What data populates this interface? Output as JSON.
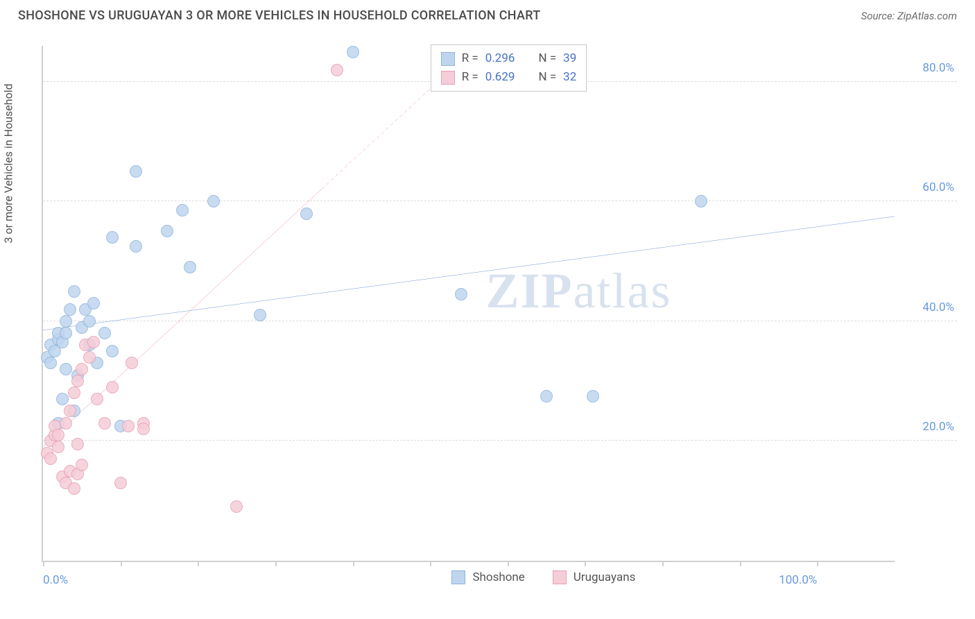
{
  "title": "SHOSHONE VS URUGUAYAN 3 OR MORE VEHICLES IN HOUSEHOLD CORRELATION CHART",
  "source_label": "Source: ZipAtlas.com",
  "y_axis_label": "3 or more Vehicles in Household",
  "watermark_a": "ZIP",
  "watermark_b": "atlas",
  "chart": {
    "type": "scatter",
    "x_domain": [
      0,
      110
    ],
    "y_domain": [
      0,
      86
    ],
    "x_ticks": [
      0,
      10,
      20,
      30,
      40,
      50,
      60,
      70,
      80,
      90,
      100
    ],
    "x_tick_labels": {
      "0": "0.0%",
      "100": "100.0%"
    },
    "y_ticks": [
      20,
      40,
      60,
      80
    ],
    "y_tick_labels": {
      "20": "20.0%",
      "40": "40.0%",
      "60": "60.0%",
      "80": "80.0%"
    },
    "grid_color": "#dcdcdc",
    "axis_color": "#d0d0d0",
    "background_color": "#ffffff",
    "tick_label_color": "#6699dd",
    "title_color": "#4a4a4a",
    "series": [
      {
        "name": "Shoshone",
        "fill": "#bfd5ee",
        "stroke": "#8fb5dd",
        "line_color": "#3a6fc8",
        "line_width": 3,
        "line_dash": "none",
        "r": 0.296,
        "n": 39,
        "regression": {
          "x1": 0,
          "y1": 38.5,
          "x2": 110,
          "y2": 57.5
        },
        "points": [
          [
            0.5,
            34
          ],
          [
            1,
            36
          ],
          [
            1,
            33
          ],
          [
            1.5,
            35
          ],
          [
            2,
            37
          ],
          [
            2,
            38
          ],
          [
            2.5,
            36.5
          ],
          [
            3,
            38
          ],
          [
            3,
            40
          ],
          [
            3.5,
            42
          ],
          [
            4,
            45
          ],
          [
            3,
            32
          ],
          [
            2.5,
            27
          ],
          [
            2,
            23
          ],
          [
            5,
            39
          ],
          [
            5.5,
            42
          ],
          [
            6,
            40
          ],
          [
            6.5,
            43
          ],
          [
            8,
            38
          ],
          [
            9,
            54
          ],
          [
            12,
            52.5
          ],
          [
            7,
            33
          ],
          [
            10,
            22.5
          ],
          [
            12,
            65
          ],
          [
            16,
            55
          ],
          [
            18,
            58.5
          ],
          [
            22,
            60
          ],
          [
            19,
            49
          ],
          [
            28,
            41
          ],
          [
            34,
            58
          ],
          [
            40,
            85
          ],
          [
            54,
            44.5
          ],
          [
            65,
            27.5
          ],
          [
            71,
            27.5
          ],
          [
            85,
            60
          ],
          [
            9,
            35
          ],
          [
            4,
            25
          ],
          [
            4.5,
            31
          ],
          [
            6,
            36
          ]
        ]
      },
      {
        "name": "Uruguayans",
        "fill": "#f5cdd8",
        "stroke": "#e79fb5",
        "line_color": "#e65a86",
        "line_width": 3,
        "line_dash": "4 4",
        "dash_after_x": 36,
        "r": 0.629,
        "n": 32,
        "regression": {
          "x1": 0,
          "y1": 19,
          "x2": 56,
          "y2": 86
        },
        "points": [
          [
            0.5,
            18
          ],
          [
            1,
            20
          ],
          [
            1,
            17
          ],
          [
            1.5,
            21
          ],
          [
            1.5,
            22.5
          ],
          [
            2,
            21
          ],
          [
            2,
            19
          ],
          [
            2.5,
            14
          ],
          [
            3,
            13
          ],
          [
            3.5,
            15
          ],
          [
            4,
            12
          ],
          [
            4.5,
            14.5
          ],
          [
            5,
            16
          ],
          [
            3,
            23
          ],
          [
            3.5,
            25
          ],
          [
            4,
            28
          ],
          [
            4.5,
            30
          ],
          [
            5,
            32
          ],
          [
            5.5,
            36
          ],
          [
            6,
            34
          ],
          [
            6.5,
            36.5
          ],
          [
            7,
            27
          ],
          [
            8,
            23
          ],
          [
            9,
            29
          ],
          [
            10,
            13
          ],
          [
            11,
            22.5
          ],
          [
            13,
            23
          ],
          [
            13,
            22
          ],
          [
            11.5,
            33
          ],
          [
            25,
            9
          ],
          [
            38,
            82
          ],
          [
            4.5,
            19.5
          ]
        ]
      }
    ],
    "legend_top": {
      "r_label": "R =",
      "n_label": "N ="
    },
    "legend_bottom": [
      {
        "label": "Shoshone",
        "swatch_fill": "#bfd5ee",
        "swatch_stroke": "#8fb5dd"
      },
      {
        "label": "Uruguayans",
        "swatch_fill": "#f5cdd8",
        "swatch_stroke": "#e79fb5"
      }
    ]
  }
}
